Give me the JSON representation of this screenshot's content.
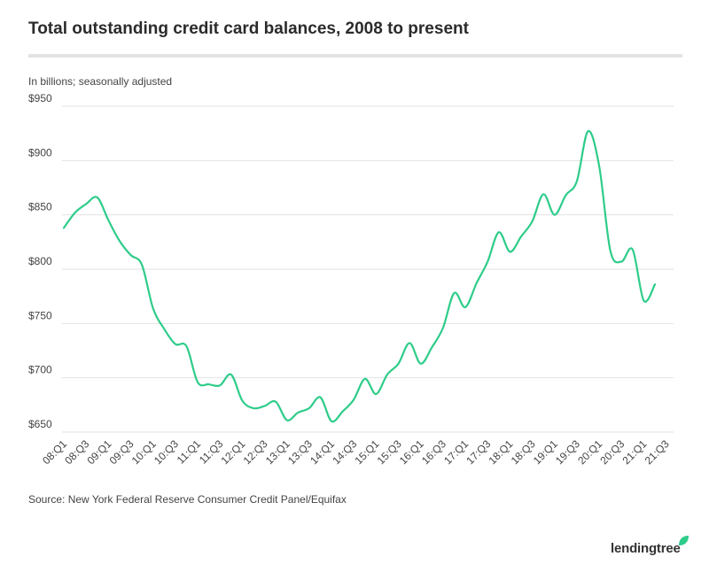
{
  "title": "Total outstanding credit card balances, 2008 to present",
  "subtitle": "In billions; seasonally adjusted",
  "source": "Source: New York Federal Reserve Consumer Credit Panel/Equifax",
  "brand": "lendingtree",
  "colors": {
    "line": "#2ecc8a",
    "grid": "#e2e2e2",
    "brand_leaf": "#2ecc8a"
  },
  "chart_data": {
    "type": "line",
    "title": "Total outstanding credit card balances, 2008 to present",
    "ylabel": "In billions; seasonally adjusted",
    "ylim": [
      650,
      950
    ],
    "yticks": [
      950,
      900,
      850,
      800,
      750,
      700,
      650
    ],
    "ytick_labels": [
      "$950",
      "$900",
      "$850",
      "$800",
      "$750",
      "$700",
      "$650"
    ],
    "grid": true,
    "x": [
      "08:Q1",
      "08:Q2",
      "08:Q3",
      "08:Q4",
      "09:Q1",
      "09:Q2",
      "09:Q3",
      "09:Q4",
      "10:Q1",
      "10:Q2",
      "10:Q3",
      "10:Q4",
      "11:Q1",
      "11:Q2",
      "11:Q3",
      "11:Q4",
      "12:Q1",
      "12:Q2",
      "12:Q3",
      "12:Q4",
      "13:Q1",
      "13:Q2",
      "13:Q3",
      "13:Q4",
      "14:Q1",
      "14:Q2",
      "14:Q3",
      "14:Q4",
      "15:Q1",
      "15:Q2",
      "15:Q3",
      "15:Q4",
      "16:Q1",
      "16:Q2",
      "16:Q3",
      "16:Q4",
      "17:Q1",
      "17:Q2",
      "17:Q3",
      "17:Q4",
      "18:Q1",
      "18:Q2",
      "18:Q3",
      "18:Q4",
      "19:Q1",
      "19:Q2",
      "19:Q3",
      "19:Q4",
      "20:Q1",
      "20:Q2",
      "20:Q3",
      "20:Q4",
      "21:Q1",
      "21:Q2"
    ],
    "xtick_labels": [
      "08:Q1",
      "08:Q3",
      "09:Q1",
      "09:Q3",
      "10:Q1",
      "10:Q3",
      "11:Q1",
      "11:Q3",
      "12:Q1",
      "12:Q3",
      "13:Q1",
      "13:Q3",
      "14:Q1",
      "14:Q3",
      "15:Q1",
      "15:Q3",
      "16:Q1",
      "16:Q3",
      "17:Q1",
      "17:Q3",
      "18:Q1",
      "18:Q3",
      "19:Q1",
      "19:Q3",
      "20:Q1",
      "20:Q3",
      "21:Q1",
      "21:Q3"
    ],
    "series": [
      {
        "values": [
          838,
          852,
          860,
          866,
          845,
          826,
          813,
          804,
          764,
          745,
          731,
          729,
          696,
          694,
          693,
          703,
          679,
          672,
          674,
          678,
          661,
          668,
          672,
          682,
          660,
          669,
          680,
          699,
          685,
          703,
          713,
          732,
          713,
          728,
          746,
          778,
          765,
          787,
          807,
          834,
          816,
          830,
          844,
          869,
          850,
          868,
          881,
          927,
          895,
          817,
          807,
          818,
          771,
          786
        ]
      }
    ]
  }
}
